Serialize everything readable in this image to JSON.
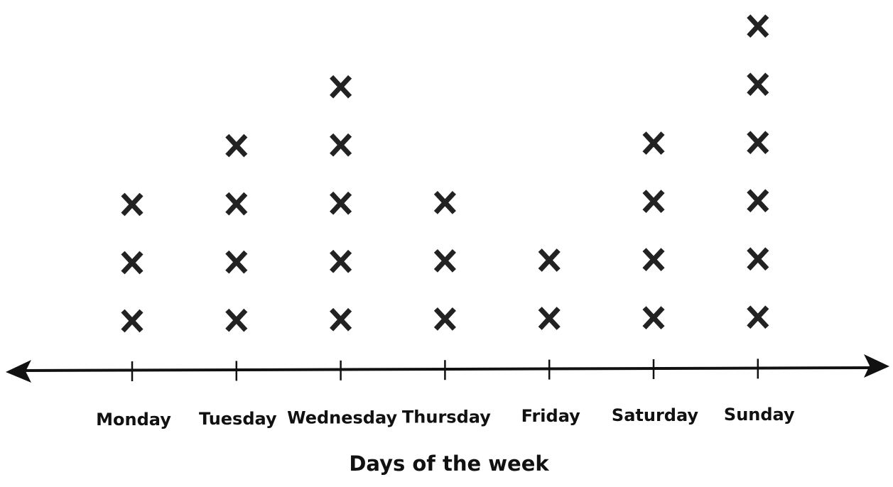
{
  "chart_data": {
    "type": "dotplot",
    "xlabel": "Days of the week",
    "categories": [
      "Monday",
      "Tuesday",
      "Wednesday",
      "Thursday",
      "Friday",
      "Saturday",
      "Sunday"
    ],
    "values": [
      3,
      4,
      5,
      3,
      2,
      4,
      6
    ],
    "color": "#222"
  }
}
